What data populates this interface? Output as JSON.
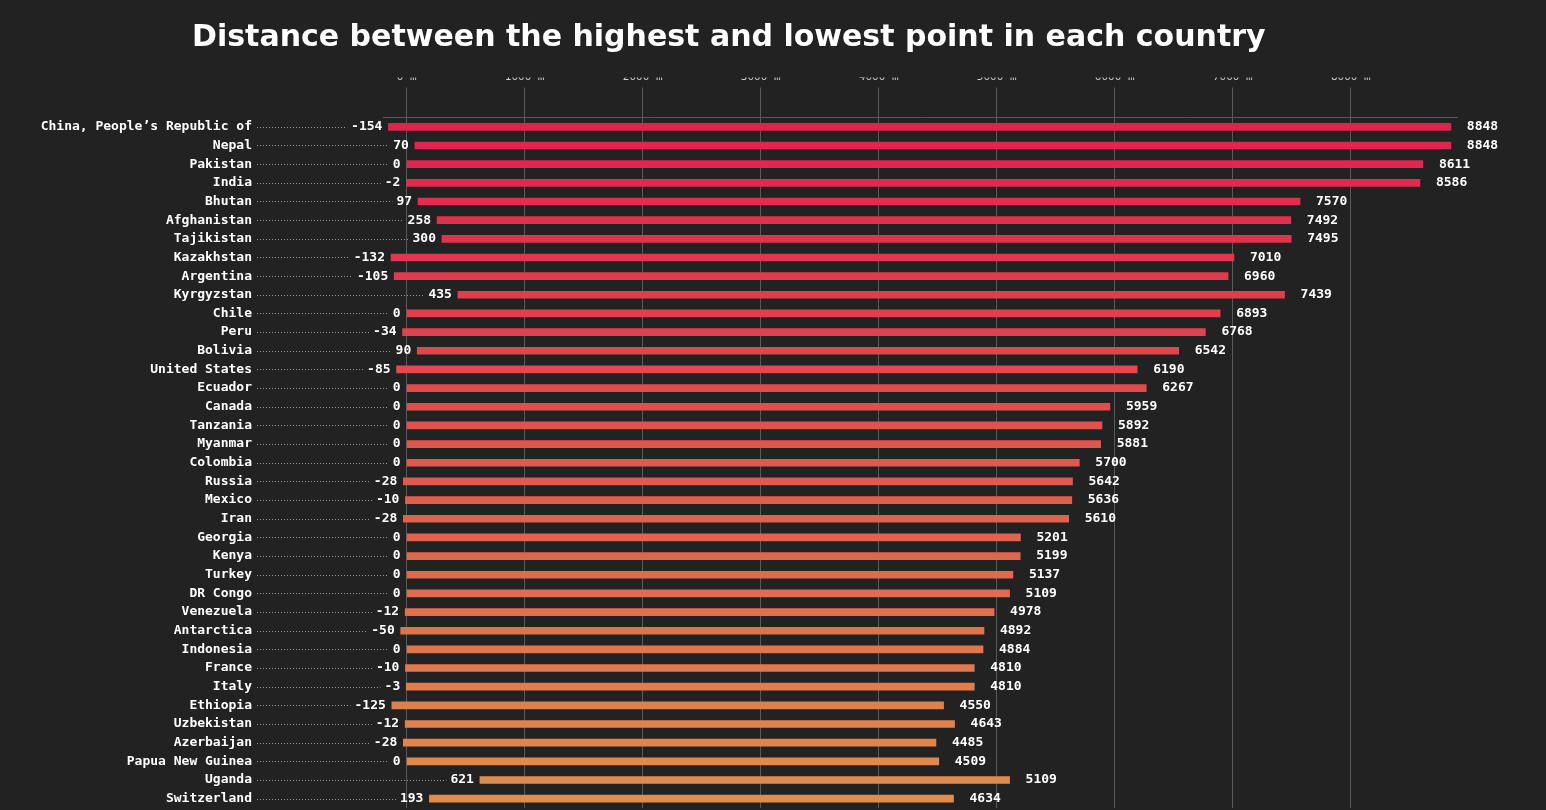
{
  "chart_data": {
    "type": "bar",
    "orientation": "horizontal",
    "title": "Distance between the highest and lowest point in each country",
    "categories": [
      "China, People’s Republic of",
      "Nepal",
      "Pakistan",
      "India",
      "Bhutan",
      "Afghanistan",
      "Tajikistan",
      "Kazakhstan",
      "Argentina",
      "Kyrgyzstan",
      "Chile",
      "Peru",
      "Bolivia",
      "United States",
      "Ecuador",
      "Canada",
      "Tanzania",
      "Myanmar",
      "Colombia",
      "Russia",
      "Mexico",
      "Iran",
      "Georgia",
      "Kenya",
      "Turkey",
      "DR Congo",
      "Venezuela",
      "Antarctica",
      "Indonesia",
      "France",
      "Italy",
      "Ethiopia",
      "Uzbekistan",
      "Azerbaijan",
      "Papua New Guinea",
      "Uganda",
      "Switzerland"
    ],
    "values": [
      [
        -154,
        8848
      ],
      [
        70,
        8848
      ],
      [
        0,
        8611
      ],
      [
        -2,
        8586
      ],
      [
        97,
        7570
      ],
      [
        258,
        7492
      ],
      [
        300,
        7495
      ],
      [
        -132,
        7010
      ],
      [
        -105,
        6960
      ],
      [
        435,
        7439
      ],
      [
        0,
        6893
      ],
      [
        -34,
        6768
      ],
      [
        90,
        6542
      ],
      [
        -85,
        6190
      ],
      [
        0,
        6267
      ],
      [
        0,
        5959
      ],
      [
        0,
        5892
      ],
      [
        0,
        5881
      ],
      [
        0,
        5700
      ],
      [
        -28,
        5642
      ],
      [
        -10,
        5636
      ],
      [
        -28,
        5610
      ],
      [
        0,
        5201
      ],
      [
        0,
        5199
      ],
      [
        0,
        5137
      ],
      [
        0,
        5109
      ],
      [
        -12,
        4978
      ],
      [
        -50,
        4892
      ],
      [
        0,
        4884
      ],
      [
        -10,
        4810
      ],
      [
        -3,
        4810
      ],
      [
        -125,
        4550
      ],
      [
        -12,
        4643
      ],
      [
        -28,
        4485
      ],
      [
        0,
        4509
      ],
      [
        621,
        5109
      ],
      [
        193,
        4634
      ]
    ],
    "colors": [
      "#e0224e",
      "#e0254e",
      "#e0284e",
      "#e02b4e",
      "#e02e4e",
      "#e0314e",
      "#e0344e",
      "#e0374e",
      "#e03a4e",
      "#e03d4e",
      "#e0404e",
      "#e0434e",
      "#e0464e",
      "#e0494e",
      "#e04c4e",
      "#e04f4e",
      "#e0524e",
      "#e0554e",
      "#e0584e",
      "#e05b4e",
      "#e05e4e",
      "#e0614e",
      "#e0644e",
      "#e0674e",
      "#e06a4e",
      "#e06d4e",
      "#e0704e",
      "#e0734e",
      "#e0764e",
      "#e0794e",
      "#e07c4e",
      "#e07f4e",
      "#e0824e",
      "#e0854e",
      "#e0884e",
      "#e08b4e",
      "#e08e4e"
    ],
    "xlim": [
      -200,
      8900
    ],
    "xticks": [
      {
        "value": 0,
        "label": "0 m"
      },
      {
        "value": 1000,
        "label": "1000 m"
      },
      {
        "value": 2000,
        "label": "2000 m"
      },
      {
        "value": 3000,
        "label": "3000 m"
      },
      {
        "value": 4000,
        "label": "4000 m"
      },
      {
        "value": 5000,
        "label": "5000 m"
      },
      {
        "value": 6000,
        "label": "6000 m"
      },
      {
        "value": 7000,
        "label": "7000 m"
      },
      {
        "value": 8000,
        "label": "8000 m"
      }
    ],
    "grid": true,
    "data_labels": true
  }
}
